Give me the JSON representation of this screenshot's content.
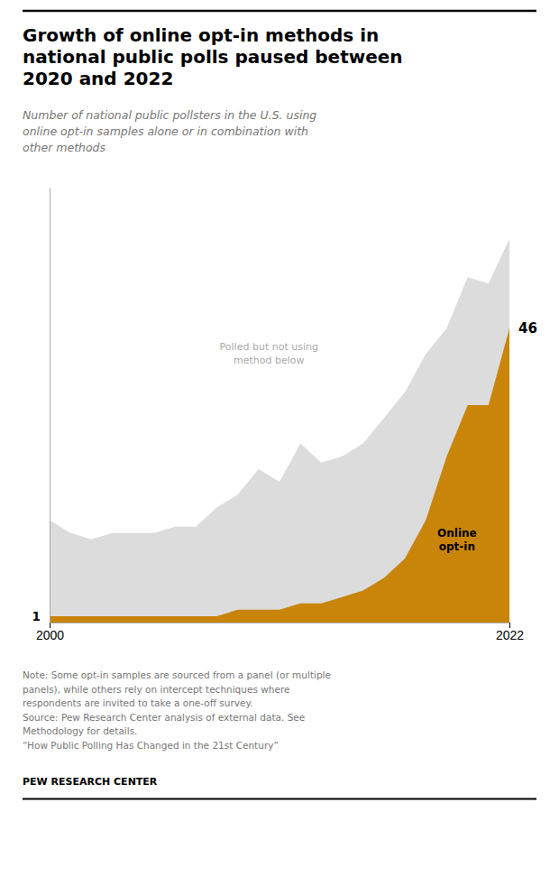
{
  "chart_data": {
    "type": "area",
    "title": "Growth of online opt-in methods in\nnational public polls paused between\n2020 and 2022",
    "subtitle": "Number of national public pollsters in the U.S. using\nonline opt-in samples alone or in combination with\nother methods",
    "x": [
      2000,
      2001,
      2002,
      2003,
      2004,
      2005,
      2006,
      2007,
      2008,
      2009,
      2010,
      2011,
      2012,
      2013,
      2014,
      2015,
      2016,
      2017,
      2018,
      2019,
      2020,
      2021,
      2022
    ],
    "series": [
      {
        "name": "Polled but not using\nmethod below",
        "color": "#DCDCDC",
        "values": [
          16,
          14,
          13,
          14,
          14,
          14,
          15,
          15,
          18,
          20,
          24,
          22,
          28,
          25,
          26,
          28,
          32,
          36,
          42,
          46,
          54,
          53,
          60
        ]
      },
      {
        "name": "Online\nopt-in",
        "color": "#C8850A",
        "values": [
          1,
          1,
          1,
          1,
          1,
          1,
          1,
          1,
          1,
          2,
          2,
          2,
          3,
          3,
          4,
          5,
          7,
          10,
          16,
          26,
          34,
          34,
          46
        ]
      }
    ],
    "annotations": [
      {
        "text": "1",
        "x": 2000,
        "y": 1
      },
      {
        "text": "46",
        "x": 2022,
        "y": 46
      }
    ],
    "xlim": [
      2000,
      2022
    ],
    "xticks": [
      2000,
      2022
    ],
    "ylim": [
      0,
      68
    ],
    "tick_labels": "x",
    "grid": false,
    "note": "Note: Some opt-in samples are sourced from a panel (or multiple\npanels), while others rely on intercept techniques where\nrespondents are invited to take a one-off survey.\nSource: Pew Research Center analysis of external data. See\nMethodology for details.\n“How Public Polling Has Changed in the 21st Century”",
    "footer": "PEW RESEARCH CENTER"
  }
}
